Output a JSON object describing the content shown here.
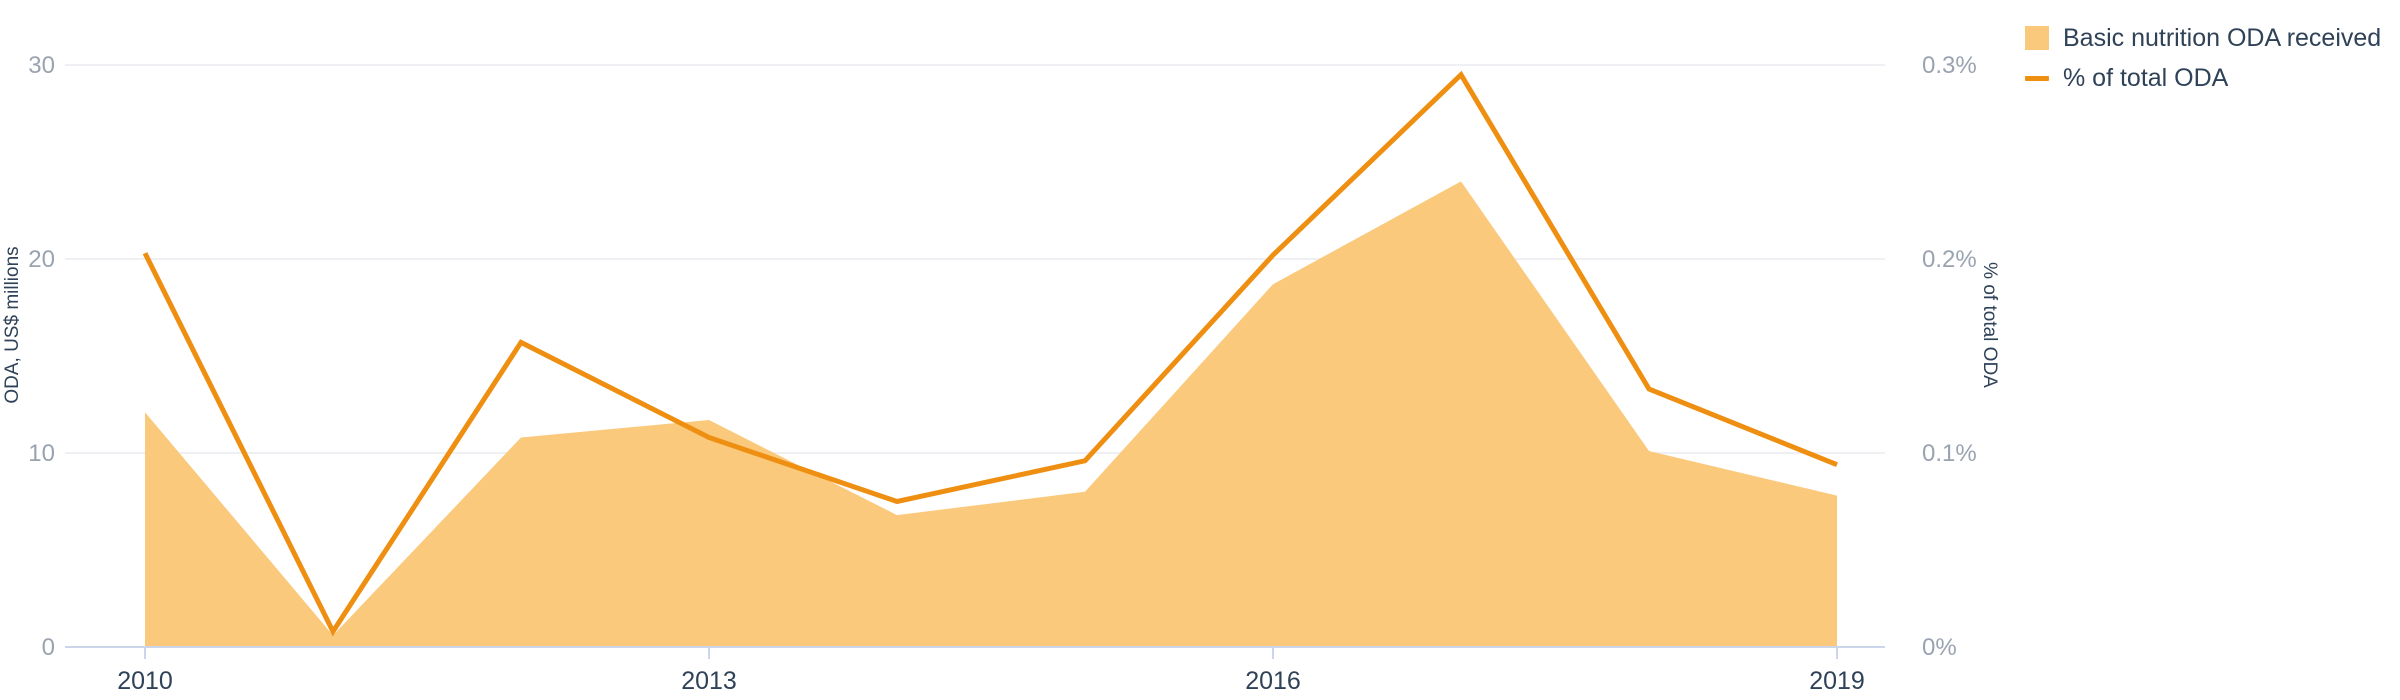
{
  "chart_data": {
    "type": "area",
    "x": [
      "2010",
      "2011",
      "2012",
      "2013",
      "2014",
      "2015",
      "2016",
      "2017",
      "2018",
      "2019"
    ],
    "x_tick_labels": [
      "2010",
      "2013",
      "2016",
      "2019"
    ],
    "y_left": {
      "label": "ODA, US$ millions",
      "ticks": [
        "0",
        "10",
        "20",
        "30"
      ],
      "lim": [
        0,
        30
      ]
    },
    "y_right": {
      "label": "% of total ODA",
      "ticks": [
        "0%",
        "0.1%",
        "0.2%",
        "0.3%"
      ],
      "lim": [
        0,
        0.3
      ]
    },
    "series": [
      {
        "name": "Basic nutrition ODA received",
        "type": "area",
        "axis": "left",
        "color": "#fbc97c",
        "values": [
          12.1,
          0.6,
          10.8,
          11.7,
          6.8,
          8.0,
          18.7,
          24.0,
          10.1,
          7.8
        ]
      },
      {
        "name": "% of total ODA",
        "type": "line",
        "axis": "right",
        "color": "#ef8f12",
        "values": [
          0.203,
          0.008,
          0.157,
          0.108,
          0.075,
          0.096,
          0.202,
          0.295,
          0.133,
          0.094
        ]
      }
    ],
    "grid": true,
    "legend_position": "top-right"
  }
}
